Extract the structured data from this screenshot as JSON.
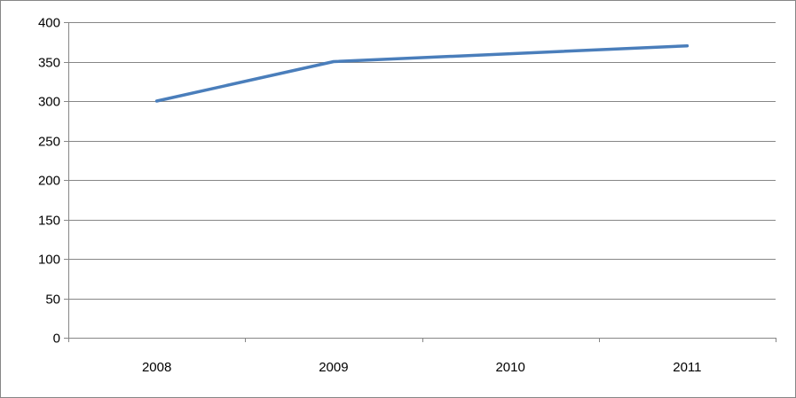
{
  "chart_data": {
    "type": "line",
    "title": "",
    "xlabel": "",
    "ylabel": "",
    "categories": [
      "2008",
      "2009",
      "2010",
      "2011"
    ],
    "series": [
      {
        "values": [
          300,
          350,
          360,
          370
        ]
      }
    ],
    "ylim": [
      0,
      400
    ],
    "yticks": [
      0,
      50,
      100,
      150,
      200,
      250,
      300,
      350,
      400
    ],
    "grid": "horizontal",
    "legend": "none",
    "colors": {
      "line": "#4a7ebb",
      "grid": "#868686",
      "axis": "#868686",
      "border": "#868686"
    }
  }
}
